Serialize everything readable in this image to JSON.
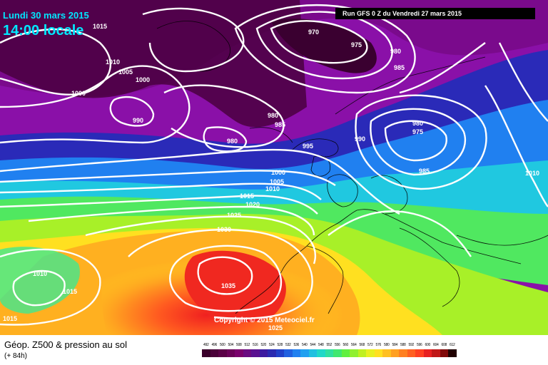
{
  "header": {
    "date": "Lundi 30 mars 2015",
    "time": "14:00 locale",
    "run": "Run GFS 0 Z du Vendredi 27 mars 2015"
  },
  "footer": {
    "title": "Géop. Z500 & pression au sol",
    "subtitle": "(+ 84h)"
  },
  "copyright": "Copyright © 2015 Meteociel.fr",
  "legend": {
    "values": [
      "492",
      "496",
      "500",
      "504",
      "508",
      "512",
      "516",
      "520",
      "524",
      "528",
      "532",
      "536",
      "540",
      "544",
      "548",
      "552",
      "556",
      "560",
      "564",
      "568",
      "572",
      "576",
      "580",
      "584",
      "588",
      "592",
      "596",
      "600",
      "604",
      "608",
      "612"
    ],
    "colors": [
      "#3a002a",
      "#4a0038",
      "#5a0046",
      "#6a0058",
      "#7a006c",
      "#6a0a80",
      "#5a1090",
      "#3c1aa0",
      "#2a2ab0",
      "#2040c8",
      "#2060e0",
      "#2080f0",
      "#20a0f0",
      "#20c0e0",
      "#20d8c8",
      "#30e0a0",
      "#40e870",
      "#60f040",
      "#90f030",
      "#c0f020",
      "#e8f020",
      "#ffe020",
      "#ffc020",
      "#ffa020",
      "#ff8020",
      "#ff6020",
      "#ff4020",
      "#e82020",
      "#c01818",
      "#800808",
      "#200000"
    ]
  },
  "isobar_labels": [
    "1015",
    "1010",
    "1005",
    "1000",
    "1000",
    "990",
    "980",
    "985",
    "970",
    "975",
    "980",
    "985",
    "980",
    "990",
    "995",
    "980",
    "975",
    "985",
    "1010",
    "1000",
    "1005",
    "1010",
    "1015",
    "1020",
    "1025",
    "1030",
    "1035",
    "1010",
    "1015",
    "1015",
    "1025"
  ]
}
